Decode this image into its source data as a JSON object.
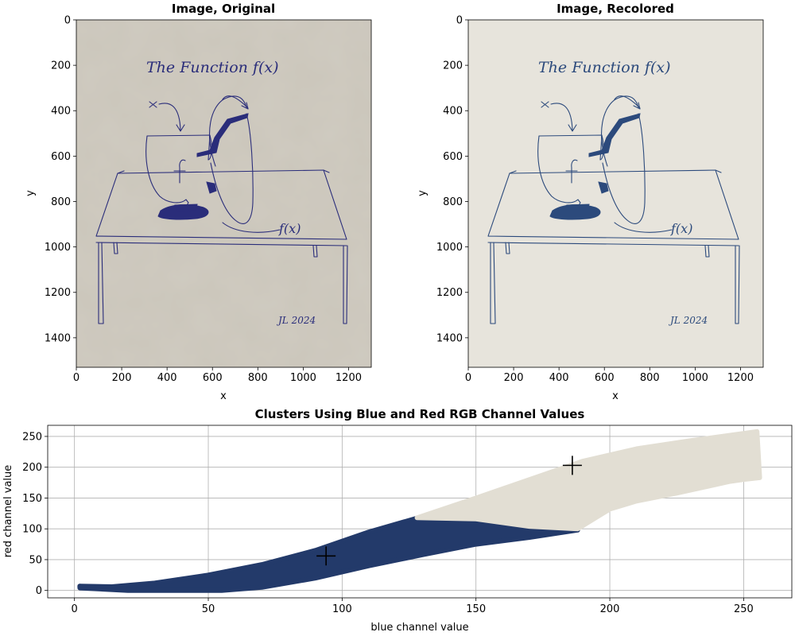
{
  "colors": {
    "paper": "#cbc6bb",
    "paper_recolored": "#e7e4dc",
    "ink_original": "#2a2d7a",
    "ink_recolored": "#2c4a7c",
    "cluster_dark": "#233a6a",
    "cluster_light": "#e2ded3",
    "grid": "#b0b0b0",
    "centroid": "#000000"
  },
  "chart_data": [
    {
      "type": "image",
      "title": "Image, Original",
      "xlabel": "x",
      "ylabel": "y",
      "xlim": [
        0,
        1300
      ],
      "ylim": [
        1530,
        0
      ],
      "xticks": [
        "0",
        "200",
        "400",
        "600",
        "800",
        "1000",
        "1200"
      ],
      "yticks": [
        "0",
        "200",
        "400",
        "600",
        "800",
        "1000",
        "1200",
        "1400"
      ],
      "image_text": [
        "The Function f(x)",
        "x",
        "f",
        "f(x)",
        "JL 2024"
      ]
    },
    {
      "type": "image",
      "title": "Image, Recolored",
      "xlabel": "x",
      "ylabel": "y",
      "xlim": [
        0,
        1300
      ],
      "ylim": [
        1530,
        0
      ],
      "xticks": [
        "0",
        "200",
        "400",
        "600",
        "800",
        "1000",
        "1200"
      ],
      "yticks": [
        "0",
        "200",
        "400",
        "600",
        "800",
        "1000",
        "1200",
        "1400"
      ],
      "image_text": [
        "The Function f(x)",
        "x",
        "f",
        "f(x)",
        "JL 2024"
      ]
    },
    {
      "type": "scatter",
      "title": "Clusters Using Blue and Red RGB Channel Values",
      "xlabel": "blue channel value",
      "ylabel": "red channel value",
      "xlim": [
        -10,
        268
      ],
      "ylim": [
        -12,
        268
      ],
      "xticks": [
        0,
        50,
        100,
        150,
        200,
        250
      ],
      "yticks": [
        0,
        50,
        100,
        150,
        200,
        250
      ],
      "grid": true,
      "clusters": [
        {
          "color": "#233a6a",
          "centroid": [
            94,
            56
          ],
          "outline": [
            [
              2,
              7
            ],
            [
              14,
              6
            ],
            [
              30,
              12
            ],
            [
              50,
              25
            ],
            [
              70,
              42
            ],
            [
              90,
              65
            ],
            [
              110,
              95
            ],
            [
              130,
              120
            ],
            [
              150,
              116
            ],
            [
              170,
              105
            ],
            [
              185,
              102
            ],
            [
              188,
              98
            ],
            [
              170,
              86
            ],
            [
              150,
              75
            ],
            [
              130,
              58
            ],
            [
              110,
              40
            ],
            [
              90,
              20
            ],
            [
              70,
              5
            ],
            [
              55,
              0
            ],
            [
              20,
              0
            ],
            [
              2,
              4
            ]
          ]
        },
        {
          "color": "#e2ded3",
          "centroid": [
            186,
            203
          ],
          "outline": [
            [
              128,
              118
            ],
            [
              150,
              150
            ],
            [
              170,
              180
            ],
            [
              190,
              210
            ],
            [
              210,
              230
            ],
            [
              230,
              243
            ],
            [
              255,
              258
            ],
            [
              256,
              183
            ],
            [
              250,
              180
            ],
            [
              245,
              177
            ],
            [
              225,
              158
            ],
            [
              210,
              145
            ],
            [
              200,
              132
            ],
            [
              188,
              100
            ],
            [
              170,
              104
            ],
            [
              150,
              116
            ]
          ]
        }
      ]
    }
  ]
}
